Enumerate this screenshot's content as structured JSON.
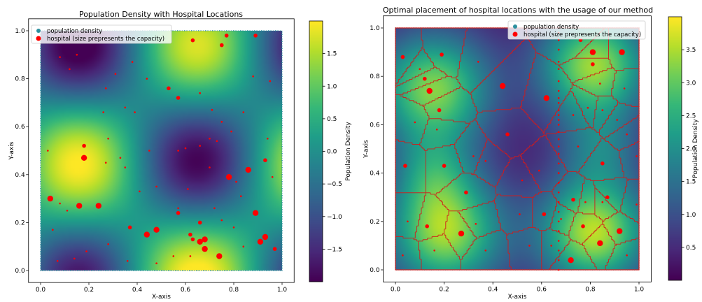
{
  "chart_data": [
    {
      "type": "heatmap",
      "title": "Population Density with Hospital Locations",
      "xlabel": "X-axis",
      "ylabel": "Y-axis",
      "xlim": [
        -0.05,
        1.05
      ],
      "ylim": [
        -0.05,
        1.05
      ],
      "xticks": [
        "0.0",
        "0.2",
        "0.4",
        "0.6",
        "0.8",
        "1.0"
      ],
      "yticks": [
        "0.0",
        "0.2",
        "0.4",
        "0.6",
        "0.8",
        "1.0"
      ],
      "colorbar": {
        "label": "Population Density",
        "range": [
          -2.0,
          2.0
        ],
        "ticks": [
          "1.5",
          "1.0",
          "0.5",
          "0.0",
          "−0.5",
          "−1.0",
          "−1.5"
        ]
      },
      "legend": {
        "location": "upper-left",
        "entries": [
          "population density",
          "hospital (size prepresents the capacity)"
        ]
      },
      "density_peaks": [
        {
          "x": 0.15,
          "y": 0.45,
          "sign": "high"
        },
        {
          "x": 0.85,
          "y": 0.45,
          "sign": "high"
        },
        {
          "x": 0.55,
          "y": 1.0,
          "sign": "high"
        },
        {
          "x": 0.5,
          "y": 0.75,
          "sign": "low"
        },
        {
          "x": 0.5,
          "y": 0.1,
          "sign": "low"
        },
        {
          "x": 0.1,
          "y": 0.1,
          "sign": "low"
        },
        {
          "x": 1.0,
          "y": 0.75,
          "sign": "low"
        }
      ],
      "hospitals": [
        {
          "x": 0.04,
          "y": 0.3,
          "capacity": 3
        },
        {
          "x": 0.16,
          "y": 0.27,
          "capacity": 3
        },
        {
          "x": 0.24,
          "y": 0.27,
          "capacity": 3
        },
        {
          "x": 0.18,
          "y": 0.47,
          "capacity": 3
        },
        {
          "x": 0.18,
          "y": 0.52,
          "capacity": 2
        },
        {
          "x": 0.44,
          "y": 0.15,
          "capacity": 3
        },
        {
          "x": 0.48,
          "y": 0.17,
          "capacity": 3
        },
        {
          "x": 0.37,
          "y": 0.18,
          "capacity": 2
        },
        {
          "x": 0.57,
          "y": 0.24,
          "capacity": 2
        },
        {
          "x": 0.53,
          "y": 0.76,
          "capacity": 2
        },
        {
          "x": 0.57,
          "y": 0.72,
          "capacity": 2
        },
        {
          "x": 0.66,
          "y": 0.12,
          "capacity": 3
        },
        {
          "x": 0.68,
          "y": 0.13,
          "capacity": 3
        },
        {
          "x": 0.68,
          "y": 0.09,
          "capacity": 3
        },
        {
          "x": 0.74,
          "y": 0.06,
          "capacity": 3
        },
        {
          "x": 0.78,
          "y": 0.39,
          "capacity": 3
        },
        {
          "x": 0.86,
          "y": 0.42,
          "capacity": 3
        },
        {
          "x": 0.89,
          "y": 0.24,
          "capacity": 3
        },
        {
          "x": 0.93,
          "y": 0.14,
          "capacity": 3
        },
        {
          "x": 0.91,
          "y": 0.12,
          "capacity": 3
        },
        {
          "x": 0.97,
          "y": 0.09,
          "capacity": 2
        },
        {
          "x": 0.75,
          "y": 0.94,
          "capacity": 2
        },
        {
          "x": 0.77,
          "y": 0.98,
          "capacity": 2
        },
        {
          "x": 0.63,
          "y": 0.96,
          "capacity": 2
        },
        {
          "x": 0.89,
          "y": 0.98,
          "capacity": 2
        },
        {
          "x": 0.93,
          "y": 0.46,
          "capacity": 2
        },
        {
          "x": 0.62,
          "y": 0.15,
          "capacity": 2
        },
        {
          "x": 0.66,
          "y": 0.2,
          "capacity": 2
        },
        {
          "x": 0.63,
          "y": 0.13,
          "capacity": 2
        },
        {
          "x": 0.57,
          "y": 0.26,
          "capacity": 1
        },
        {
          "x": 0.08,
          "y": 0.89,
          "capacity": 1
        },
        {
          "x": 0.15,
          "y": 0.9,
          "capacity": 1
        },
        {
          "x": 0.12,
          "y": 0.84,
          "capacity": 1
        },
        {
          "x": 0.38,
          "y": 0.87,
          "capacity": 1
        },
        {
          "x": 0.31,
          "y": 0.82,
          "capacity": 1
        },
        {
          "x": 0.27,
          "y": 0.76,
          "capacity": 1
        },
        {
          "x": 0.26,
          "y": 0.66,
          "capacity": 1
        },
        {
          "x": 0.35,
          "y": 0.68,
          "capacity": 1
        },
        {
          "x": 0.39,
          "y": 0.66,
          "capacity": 1
        },
        {
          "x": 0.44,
          "y": 0.8,
          "capacity": 1
        },
        {
          "x": 0.66,
          "y": 0.74,
          "capacity": 1
        },
        {
          "x": 0.71,
          "y": 0.67,
          "capacity": 1
        },
        {
          "x": 0.75,
          "y": 0.62,
          "capacity": 1
        },
        {
          "x": 0.79,
          "y": 0.58,
          "capacity": 1
        },
        {
          "x": 0.84,
          "y": 0.66,
          "capacity": 1
        },
        {
          "x": 0.88,
          "y": 0.81,
          "capacity": 1
        },
        {
          "x": 0.95,
          "y": 0.79,
          "capacity": 1
        },
        {
          "x": 0.94,
          "y": 0.55,
          "capacity": 1
        },
        {
          "x": 0.96,
          "y": 0.39,
          "capacity": 1
        },
        {
          "x": 0.81,
          "y": 0.37,
          "capacity": 1
        },
        {
          "x": 0.83,
          "y": 0.31,
          "capacity": 1
        },
        {
          "x": 0.72,
          "y": 0.26,
          "capacity": 1
        },
        {
          "x": 0.75,
          "y": 0.21,
          "capacity": 1
        },
        {
          "x": 0.8,
          "y": 0.18,
          "capacity": 1
        },
        {
          "x": 0.84,
          "y": 0.1,
          "capacity": 1
        },
        {
          "x": 0.62,
          "y": 0.06,
          "capacity": 1
        },
        {
          "x": 0.55,
          "y": 0.06,
          "capacity": 1
        },
        {
          "x": 0.48,
          "y": 0.03,
          "capacity": 1
        },
        {
          "x": 0.36,
          "y": 0.04,
          "capacity": 1
        },
        {
          "x": 0.28,
          "y": 0.11,
          "capacity": 1
        },
        {
          "x": 0.19,
          "y": 0.08,
          "capacity": 1
        },
        {
          "x": 0.14,
          "y": 0.05,
          "capacity": 1
        },
        {
          "x": 0.07,
          "y": 0.04,
          "capacity": 1
        },
        {
          "x": 0.05,
          "y": 0.17,
          "capacity": 1
        },
        {
          "x": 0.11,
          "y": 0.25,
          "capacity": 1
        },
        {
          "x": 0.08,
          "y": 0.28,
          "capacity": 1
        },
        {
          "x": 0.03,
          "y": 0.5,
          "capacity": 1
        },
        {
          "x": 0.28,
          "y": 0.55,
          "capacity": 1
        },
        {
          "x": 0.35,
          "y": 0.43,
          "capacity": 1
        },
        {
          "x": 0.41,
          "y": 0.33,
          "capacity": 1
        },
        {
          "x": 0.45,
          "y": 0.5,
          "capacity": 1
        },
        {
          "x": 0.57,
          "y": 0.5,
          "capacity": 1
        },
        {
          "x": 0.6,
          "y": 0.51,
          "capacity": 1
        },
        {
          "x": 0.66,
          "y": 0.52,
          "capacity": 1
        },
        {
          "x": 0.7,
          "y": 0.55,
          "capacity": 1
        },
        {
          "x": 0.73,
          "y": 0.54,
          "capacity": 1
        },
        {
          "x": 0.7,
          "y": 0.43,
          "capacity": 1
        },
        {
          "x": 0.61,
          "y": 0.34,
          "capacity": 1
        },
        {
          "x": 0.48,
          "y": 0.35,
          "capacity": 1
        },
        {
          "x": 0.27,
          "y": 0.45,
          "capacity": 1
        },
        {
          "x": 0.33,
          "y": 0.47,
          "capacity": 1
        }
      ]
    },
    {
      "type": "heatmap",
      "title": "Optimal placement of hospital locations with the usage of our method",
      "xlabel": "X-axis",
      "ylabel": "Y-axis",
      "xlim": [
        -0.05,
        1.05
      ],
      "ylim": [
        -0.05,
        1.05
      ],
      "xticks": [
        "0.0",
        "0.2",
        "0.4",
        "0.6",
        "0.8",
        "1.0"
      ],
      "yticks": [
        "0.0",
        "0.2",
        "0.4",
        "0.6",
        "0.8",
        "1.0"
      ],
      "colorbar": {
        "label": "Population Density",
        "range": [
          0.0,
          4.0
        ],
        "ticks": [
          "3.5",
          "3.0",
          "2.5",
          "2.0",
          "1.5",
          "1.0",
          "0.5"
        ]
      },
      "legend": {
        "location": "upper-right",
        "entries": [
          "population density",
          "hospital (size prepresents the capacity)"
        ]
      },
      "density_peaks": [
        {
          "x": 0.15,
          "y": 0.75,
          "sign": "high"
        },
        {
          "x": 0.8,
          "y": 0.85,
          "sign": "high"
        },
        {
          "x": 0.2,
          "y": 0.15,
          "sign": "high"
        },
        {
          "x": 0.8,
          "y": 0.15,
          "sign": "high"
        },
        {
          "x": 0.5,
          "y": 0.48,
          "sign": "low"
        },
        {
          "x": 0.5,
          "y": 1.0,
          "sign": "low"
        },
        {
          "x": 0.5,
          "y": 0.0,
          "sign": "low"
        },
        {
          "x": 0.0,
          "y": 0.45,
          "sign": "low"
        },
        {
          "x": 1.0,
          "y": 0.45,
          "sign": "low"
        }
      ],
      "voronoi_edges": "red lines partitioning the unit square into service regions, one per hospital",
      "hospitals": [
        {
          "x": 0.14,
          "y": 0.74,
          "capacity": 3
        },
        {
          "x": 0.18,
          "y": 0.66,
          "capacity": 2
        },
        {
          "x": 0.19,
          "y": 0.89,
          "capacity": 2
        },
        {
          "x": 0.12,
          "y": 0.79,
          "capacity": 2
        },
        {
          "x": 0.1,
          "y": 0.83,
          "capacity": 1
        },
        {
          "x": 0.03,
          "y": 0.88,
          "capacity": 2
        },
        {
          "x": 0.08,
          "y": 0.61,
          "capacity": 1
        },
        {
          "x": 0.17,
          "y": 0.58,
          "capacity": 1
        },
        {
          "x": 0.44,
          "y": 0.76,
          "capacity": 3
        },
        {
          "x": 0.46,
          "y": 0.56,
          "capacity": 2
        },
        {
          "x": 0.34,
          "y": 0.86,
          "capacity": 1
        },
        {
          "x": 0.62,
          "y": 0.71,
          "capacity": 3
        },
        {
          "x": 0.67,
          "y": 0.78,
          "capacity": 1
        },
        {
          "x": 0.67,
          "y": 0.66,
          "capacity": 1
        },
        {
          "x": 0.67,
          "y": 0.54,
          "capacity": 1
        },
        {
          "x": 0.67,
          "y": 0.51,
          "capacity": 1
        },
        {
          "x": 0.67,
          "y": 0.91,
          "capacity": 1
        },
        {
          "x": 0.67,
          "y": 0.98,
          "capacity": 1
        },
        {
          "x": 0.67,
          "y": 1.0,
          "capacity": 1
        },
        {
          "x": 0.67,
          "y": 0.86,
          "capacity": 1
        },
        {
          "x": 0.67,
          "y": 0.83,
          "capacity": 1
        },
        {
          "x": 0.67,
          "y": 0.6,
          "capacity": 1
        },
        {
          "x": 0.67,
          "y": 0.57,
          "capacity": 1
        },
        {
          "x": 0.67,
          "y": 0.48,
          "capacity": 1
        },
        {
          "x": 0.67,
          "y": 0.44,
          "capacity": 1
        },
        {
          "x": 0.67,
          "y": 0.4,
          "capacity": 1
        },
        {
          "x": 0.67,
          "y": 0.36,
          "capacity": 1
        },
        {
          "x": 0.67,
          "y": 0.32,
          "capacity": 1
        },
        {
          "x": 0.67,
          "y": 0.28,
          "capacity": 1
        },
        {
          "x": 0.67,
          "y": 0.24,
          "capacity": 1
        },
        {
          "x": 0.67,
          "y": 0.2,
          "capacity": 1
        },
        {
          "x": 0.67,
          "y": 0.16,
          "capacity": 1
        },
        {
          "x": 0.67,
          "y": 0.12,
          "capacity": 1
        },
        {
          "x": 0.67,
          "y": 0.08,
          "capacity": 1
        },
        {
          "x": 0.67,
          "y": 0.04,
          "capacity": 1
        },
        {
          "x": 0.67,
          "y": 0.0,
          "capacity": 1
        },
        {
          "x": 0.67,
          "y": 0.95,
          "capacity": 1
        },
        {
          "x": 0.67,
          "y": 0.74,
          "capacity": 1
        },
        {
          "x": 0.67,
          "y": 0.71,
          "capacity": 1
        },
        {
          "x": 0.67,
          "y": 0.69,
          "capacity": 1
        },
        {
          "x": 0.67,
          "y": 0.64,
          "capacity": 1
        },
        {
          "x": 0.67,
          "y": 0.62,
          "capacity": 1
        },
        {
          "x": 0.76,
          "y": 0.95,
          "capacity": 2
        },
        {
          "x": 0.81,
          "y": 0.9,
          "capacity": 3
        },
        {
          "x": 0.81,
          "y": 0.85,
          "capacity": 2
        },
        {
          "x": 0.84,
          "y": 0.77,
          "capacity": 1
        },
        {
          "x": 0.85,
          "y": 0.66,
          "capacity": 1
        },
        {
          "x": 0.79,
          "y": 0.67,
          "capacity": 1
        },
        {
          "x": 0.93,
          "y": 0.9,
          "capacity": 3
        },
        {
          "x": 0.94,
          "y": 0.75,
          "capacity": 1
        },
        {
          "x": 0.75,
          "y": 0.51,
          "capacity": 1
        },
        {
          "x": 0.73,
          "y": 0.64,
          "capacity": 1
        },
        {
          "x": 0.91,
          "y": 0.62,
          "capacity": 1
        },
        {
          "x": 0.85,
          "y": 0.44,
          "capacity": 2
        },
        {
          "x": 0.87,
          "y": 0.3,
          "capacity": 2
        },
        {
          "x": 0.85,
          "y": 0.28,
          "capacity": 1
        },
        {
          "x": 0.95,
          "y": 0.56,
          "capacity": 1
        },
        {
          "x": 0.99,
          "y": 0.47,
          "capacity": 1
        },
        {
          "x": 0.73,
          "y": 0.29,
          "capacity": 2
        },
        {
          "x": 0.61,
          "y": 0.23,
          "capacity": 2
        },
        {
          "x": 0.68,
          "y": 0.21,
          "capacity": 1
        },
        {
          "x": 0.77,
          "y": 0.18,
          "capacity": 2
        },
        {
          "x": 0.84,
          "y": 0.11,
          "capacity": 3
        },
        {
          "x": 0.92,
          "y": 0.16,
          "capacity": 3
        },
        {
          "x": 0.72,
          "y": 0.04,
          "capacity": 3
        },
        {
          "x": 0.55,
          "y": 0.1,
          "capacity": 1
        },
        {
          "x": 0.51,
          "y": 0.23,
          "capacity": 1
        },
        {
          "x": 0.64,
          "y": 0.1,
          "capacity": 1
        },
        {
          "x": 0.27,
          "y": 0.15,
          "capacity": 3
        },
        {
          "x": 0.13,
          "y": 0.18,
          "capacity": 2
        },
        {
          "x": 0.2,
          "y": 0.43,
          "capacity": 2
        },
        {
          "x": 0.29,
          "y": 0.32,
          "capacity": 2
        },
        {
          "x": 0.37,
          "y": 0.45,
          "capacity": 1
        },
        {
          "x": 0.32,
          "y": 0.47,
          "capacity": 1
        },
        {
          "x": 0.04,
          "y": 0.43,
          "capacity": 2
        },
        {
          "x": 0.05,
          "y": 0.2,
          "capacity": 1
        },
        {
          "x": 0.03,
          "y": 0.06,
          "capacity": 1
        },
        {
          "x": 0.16,
          "y": 0.08,
          "capacity": 1
        },
        {
          "x": 0.37,
          "y": 0.08,
          "capacity": 1
        },
        {
          "x": 0.33,
          "y": 0.19,
          "capacity": 1
        },
        {
          "x": 0.52,
          "y": 0.37,
          "capacity": 1
        },
        {
          "x": 0.59,
          "y": 0.41,
          "capacity": 1
        },
        {
          "x": 0.99,
          "y": 0.27,
          "capacity": 1
        },
        {
          "x": 0.95,
          "y": 0.06,
          "capacity": 1
        },
        {
          "x": 0.78,
          "y": 0.28,
          "capacity": 1
        }
      ]
    }
  ]
}
